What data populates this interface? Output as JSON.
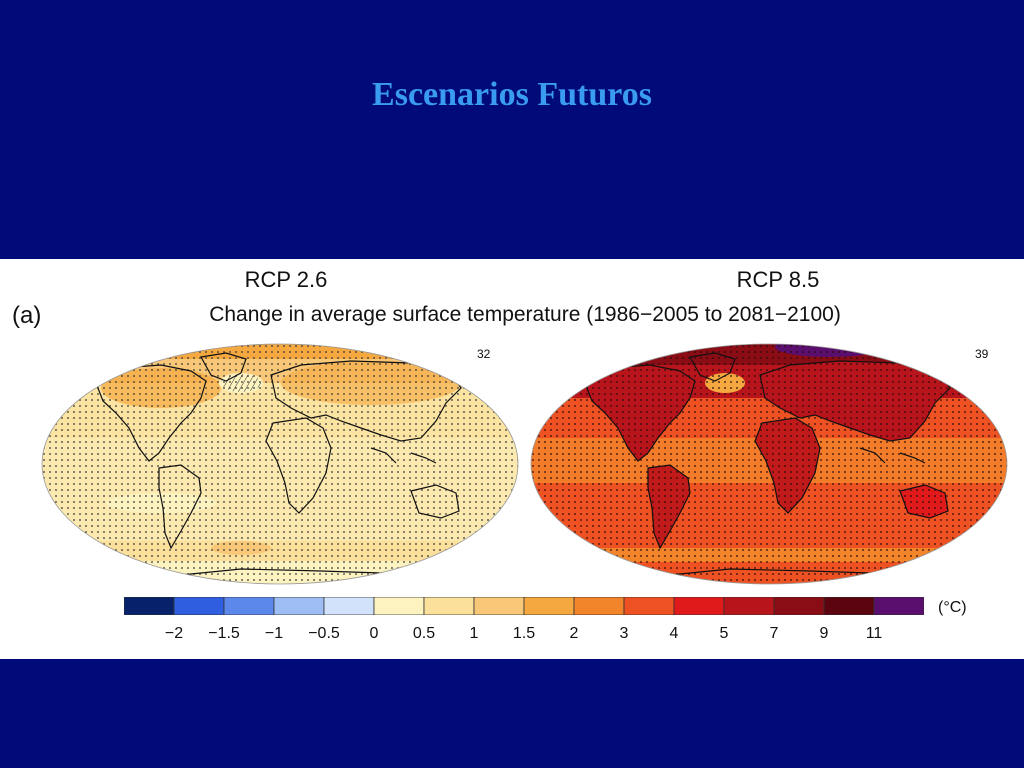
{
  "slide": {
    "title": "Escenarios Futuros"
  },
  "figure": {
    "panel_letter": "(a)",
    "subtitle": "Change in average surface temperature (1986−2005 to 2081−2100)",
    "unit": "(°C)",
    "panels": [
      {
        "title": "RCP 2.6",
        "model_count": "32"
      },
      {
        "title": "RCP 8.5",
        "model_count": "39"
      }
    ],
    "colorbar": {
      "colors": [
        "#08216b",
        "#2f5fe0",
        "#5c88ec",
        "#9dbdf4",
        "#d2e2fa",
        "#fdf3c0",
        "#fbe09c",
        "#f8c878",
        "#f5a840",
        "#f2842a",
        "#ee5122",
        "#e01a1a",
        "#b8141b",
        "#8a0c14",
        "#5c0510",
        "#5a0e6e"
      ],
      "tick_labels": [
        "−2",
        "−1.5",
        "−1",
        "−0.5",
        "0",
        "0.5",
        "1",
        "1.5",
        "2",
        "3",
        "4",
        "5",
        "7",
        "9",
        "11"
      ]
    }
  }
}
